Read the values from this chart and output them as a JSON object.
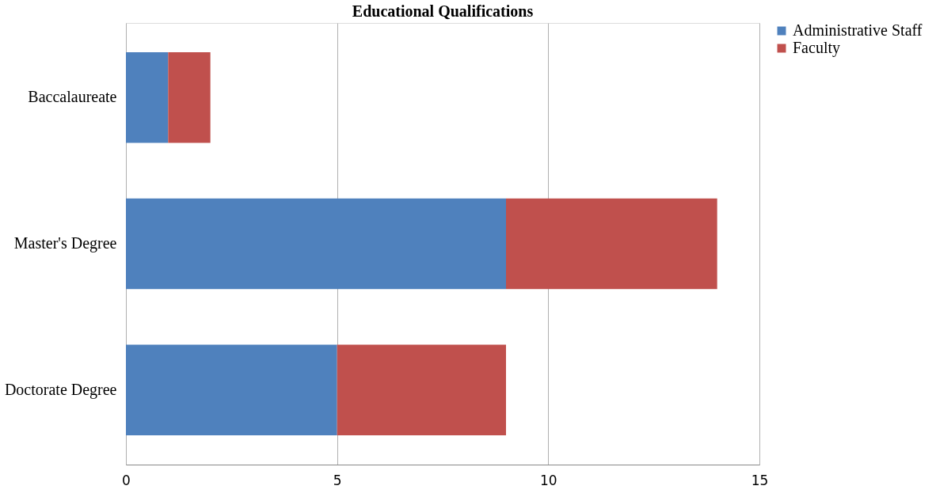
{
  "chart_data": {
    "type": "bar",
    "title": "Educational Qualifications",
    "orientation": "horizontal",
    "stacked": true,
    "categories": [
      "Baccalaureate",
      "Master's Degree",
      "Doctorate Degree"
    ],
    "series": [
      {
        "name": "Administrative Staff",
        "color": "#4f81bd",
        "values": [
          1,
          9,
          5
        ]
      },
      {
        "name": "Faculty",
        "color": "#c0504d",
        "values": [
          1,
          5,
          4
        ]
      }
    ],
    "xlim": [
      0,
      15
    ],
    "xticks": [
      0,
      5,
      10,
      15
    ],
    "grid": "x",
    "legend": "right"
  }
}
